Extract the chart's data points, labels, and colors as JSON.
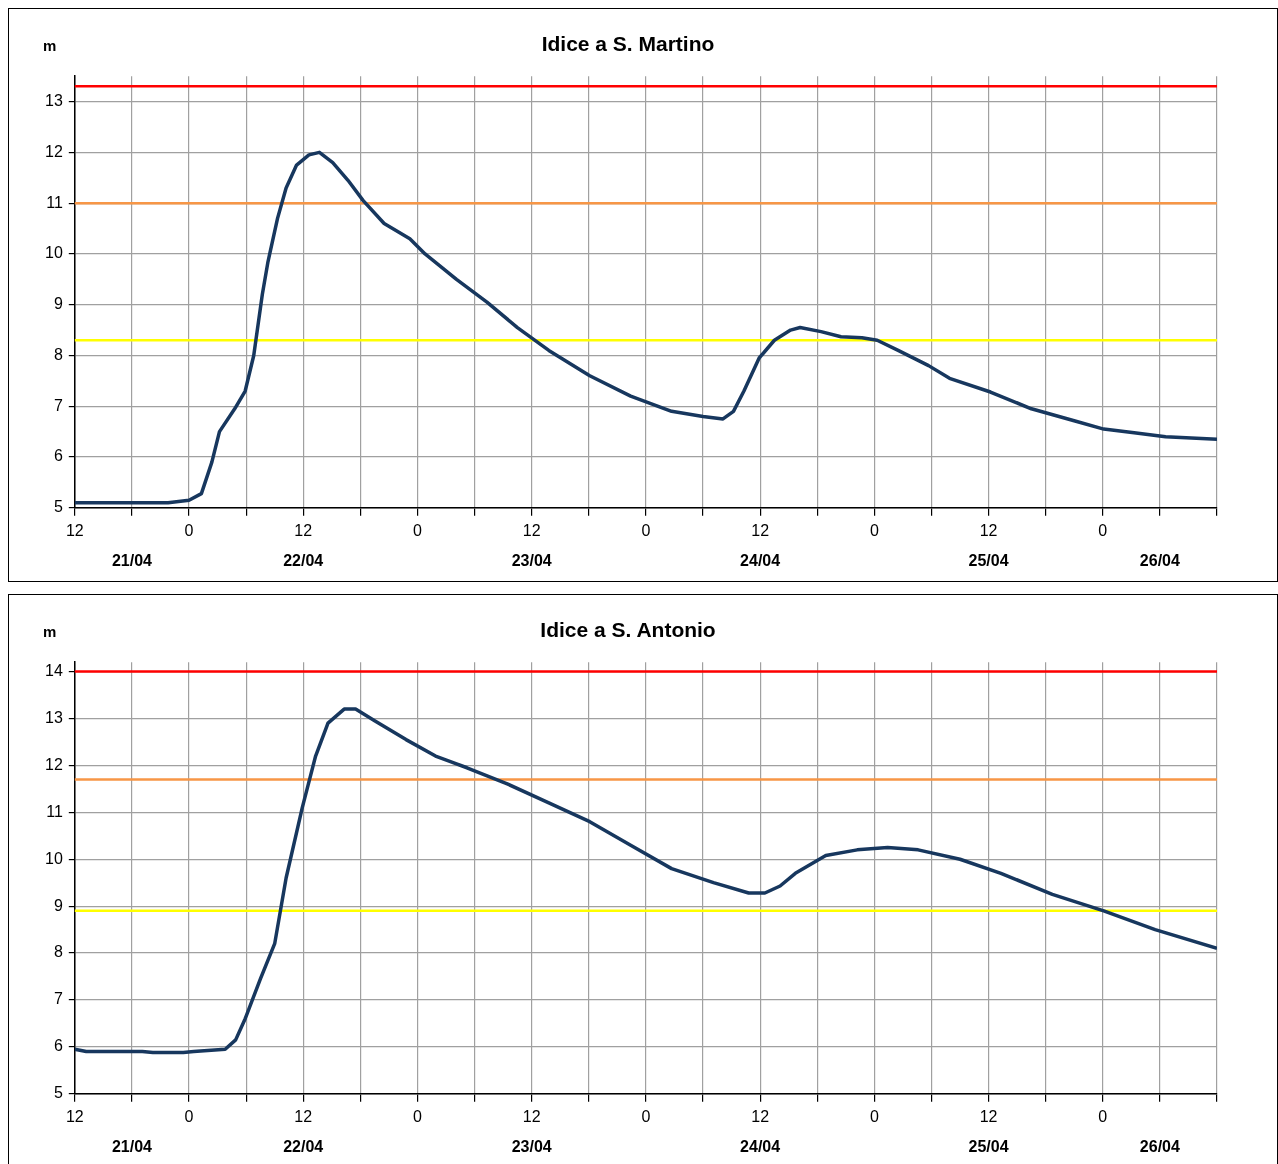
{
  "chart_data": [
    {
      "type": "line",
      "title": "Idice a S. Martino",
      "ylabel": "m",
      "grid": true,
      "legend": false,
      "marker": "none",
      "xlim": [
        "--04-21T12:00",
        "--04-26T12:00"
      ],
      "xticks": [
        {
          "value": "--04-21T12:00",
          "label": "12"
        },
        {
          "value": "--04-21T18:00",
          "label": null
        },
        {
          "value": "--04-22T00:00",
          "label": "0"
        },
        {
          "value": "--04-22T06:00",
          "label": null
        },
        {
          "value": "--04-22T12:00",
          "label": "12"
        },
        {
          "value": "--04-22T18:00",
          "label": null
        },
        {
          "value": "--04-23T00:00",
          "label": "0"
        },
        {
          "value": "--04-23T06:00",
          "label": null
        },
        {
          "value": "--04-23T12:00",
          "label": "12"
        },
        {
          "value": "--04-23T18:00",
          "label": null
        },
        {
          "value": "--04-24T00:00",
          "label": "0"
        },
        {
          "value": "--04-24T06:00",
          "label": null
        },
        {
          "value": "--04-24T12:00",
          "label": "12"
        },
        {
          "value": "--04-24T18:00",
          "label": null
        },
        {
          "value": "--04-25T00:00",
          "label": "0"
        },
        {
          "value": "--04-25T06:00",
          "label": null
        },
        {
          "value": "--04-25T12:00",
          "label": "12"
        },
        {
          "value": "--04-25T18:00",
          "label": null
        },
        {
          "value": "--04-26T00:00",
          "label": "0"
        },
        {
          "value": "--04-26T06:00",
          "label": null
        },
        {
          "value": "--04-26T12:00",
          "label": null
        }
      ],
      "ylim": [
        5,
        13.5
      ],
      "yticks": [
        5,
        6,
        7,
        8,
        9,
        10,
        11,
        12,
        13
      ],
      "ref_lines": [
        {
          "axis": "y",
          "value": 13.3,
          "color": "#ff0000"
        },
        {
          "axis": "y",
          "value": 11,
          "color": "#f79646"
        },
        {
          "axis": "y",
          "value": 8.3,
          "color": "#ffff00"
        }
      ],
      "annotations": [
        "21/04",
        "22/04",
        "23/04",
        "24/04",
        "25/04",
        "26/04"
      ],
      "series": [
        {
          "color": "#17375e",
          "x": [
            "--04-21T12:00",
            "--04-21T15:18",
            "--04-21T21:48",
            "--04-22T00:00",
            "--04-22T01:18",
            "--04-22T02:24",
            "--04-22T03:12",
            "--04-22T04:48",
            "--04-22T05:54",
            "--04-22T06:48",
            "--04-22T07:42",
            "--04-22T08:18",
            "--04-22T09:18",
            "--04-22T10:12",
            "--04-22T11:18",
            "--04-22T12:36",
            "--04-22T13:42",
            "--04-22T15:06",
            "--04-22T16:42",
            "--04-22T18:18",
            "--04-22T20:30",
            "--04-22T23:12",
            "--04-23T00:48",
            "--04-23T04:06",
            "--04-23T07:18",
            "--04-23T10:30",
            "--04-23T13:48",
            "--04-23T18:06",
            "--04-23T22:24",
            "--04-24T02:42",
            "--04-24T06:00",
            "--04-24T08:06",
            "--04-24T09:12",
            "--04-24T10:18",
            "--04-24T11:54",
            "--04-24T13:30",
            "--04-24T15:12",
            "--04-24T16:12",
            "--04-24T18:24",
            "--04-24T20:30",
            "--04-24T22:42",
            "--04-25T00:18",
            "--04-25T02:30",
            "--04-25T05:42",
            "--04-25T07:54",
            "--04-25T12:12",
            "--04-25T16:30",
            "--04-25T20:54",
            "--04-26T00:06",
            "--04-26T03:18",
            "--04-26T06:36",
            "--04-26T12:00"
          ],
          "values": [
            5.1,
            5.1,
            5.1,
            5.15,
            5.28,
            5.9,
            6.5,
            6.95,
            7.3,
            8.0,
            9.2,
            9.85,
            10.7,
            11.3,
            11.75,
            11.95,
            12.0,
            11.8,
            11.45,
            11.05,
            10.6,
            10.3,
            10.0,
            9.5,
            9.05,
            8.55,
            8.1,
            7.6,
            7.2,
            6.9,
            6.8,
            6.75,
            6.9,
            7.3,
            7.95,
            8.3,
            8.5,
            8.55,
            8.47,
            8.37,
            8.35,
            8.3,
            8.1,
            7.8,
            7.55,
            7.28,
            6.95,
            6.72,
            6.55,
            6.48,
            6.4,
            6.35
          ]
        }
      ]
    },
    {
      "type": "line",
      "title": "Idice a S. Antonio",
      "ylabel": "m",
      "grid": true,
      "legend": false,
      "marker": "none",
      "xlim": [
        "--04-21T12:00",
        "--04-26T12:00"
      ],
      "xticks": [
        {
          "value": "--04-21T12:00",
          "label": "12"
        },
        {
          "value": "--04-21T18:00",
          "label": null
        },
        {
          "value": "--04-22T00:00",
          "label": "0"
        },
        {
          "value": "--04-22T06:00",
          "label": null
        },
        {
          "value": "--04-22T12:00",
          "label": "12"
        },
        {
          "value": "--04-22T18:00",
          "label": null
        },
        {
          "value": "--04-23T00:00",
          "label": "0"
        },
        {
          "value": "--04-23T06:00",
          "label": null
        },
        {
          "value": "--04-23T12:00",
          "label": "12"
        },
        {
          "value": "--04-23T18:00",
          "label": null
        },
        {
          "value": "--04-24T00:00",
          "label": "0"
        },
        {
          "value": "--04-24T06:00",
          "label": null
        },
        {
          "value": "--04-24T12:00",
          "label": "12"
        },
        {
          "value": "--04-24T18:00",
          "label": null
        },
        {
          "value": "--04-25T00:00",
          "label": "0"
        },
        {
          "value": "--04-25T06:00",
          "label": null
        },
        {
          "value": "--04-25T12:00",
          "label": "12"
        },
        {
          "value": "--04-25T18:00",
          "label": null
        },
        {
          "value": "--04-26T00:00",
          "label": "0"
        },
        {
          "value": "--04-26T06:00",
          "label": null
        },
        {
          "value": "--04-26T12:00",
          "label": null
        }
      ],
      "ylim": [
        5,
        14.2
      ],
      "yticks": [
        5,
        6,
        7,
        8,
        9,
        10,
        11,
        12,
        13,
        14
      ],
      "ref_lines": [
        {
          "axis": "y",
          "value": 14,
          "color": "#ff0000"
        },
        {
          "axis": "y",
          "value": 11.7,
          "color": "#f79646"
        },
        {
          "axis": "y",
          "value": 8.9,
          "color": "#ffff00"
        }
      ],
      "annotations": [
        "21/04",
        "22/04",
        "23/04",
        "24/04",
        "25/04",
        "26/04"
      ],
      "series": [
        {
          "color": "#17375e",
          "x": [
            "--04-21T12:00",
            "--04-21T13:12",
            "--04-21T19:06",
            "--04-21T20:12",
            "--04-21T23:24",
            "--04-22T00:30",
            "--04-22T03:48",
            "--04-22T04:54",
            "--04-22T05:54",
            "--04-22T07:30",
            "--04-22T09:00",
            "--04-22T10:12",
            "--04-22T11:54",
            "--04-22T13:18",
            "--04-22T14:36",
            "--04-22T16:18",
            "--04-22T17:30",
            "--04-22T19:30",
            "--04-22T22:48",
            "--04-23T01:54",
            "--04-23T05:12",
            "--04-23T09:30",
            "--04-23T13:48",
            "--04-23T18:06",
            "--04-23T22:24",
            "--04-24T02:42",
            "--04-24T07:06",
            "--04-24T10:48",
            "--04-24T12:30",
            "--04-24T14:06",
            "--04-24T15:42",
            "--04-24T18:54",
            "--04-24T22:12",
            "--04-25T01:24",
            "--04-25T04:36",
            "--04-25T09:00",
            "--04-25T13:18",
            "--04-25T18:42",
            "--04-26T00:06",
            "--04-26T05:30",
            "--04-26T12:00"
          ],
          "values": [
            5.95,
            5.9,
            5.9,
            5.88,
            5.88,
            5.9,
            5.95,
            6.15,
            6.6,
            7.45,
            8.2,
            9.6,
            11.1,
            12.2,
            12.9,
            13.2,
            13.2,
            12.95,
            12.55,
            12.2,
            11.95,
            11.6,
            11.2,
            10.8,
            10.3,
            9.8,
            9.5,
            9.28,
            9.28,
            9.43,
            9.7,
            10.08,
            10.2,
            10.25,
            10.2,
            10.0,
            9.7,
            9.25,
            8.9,
            8.5,
            8.1
          ]
        }
      ]
    }
  ]
}
